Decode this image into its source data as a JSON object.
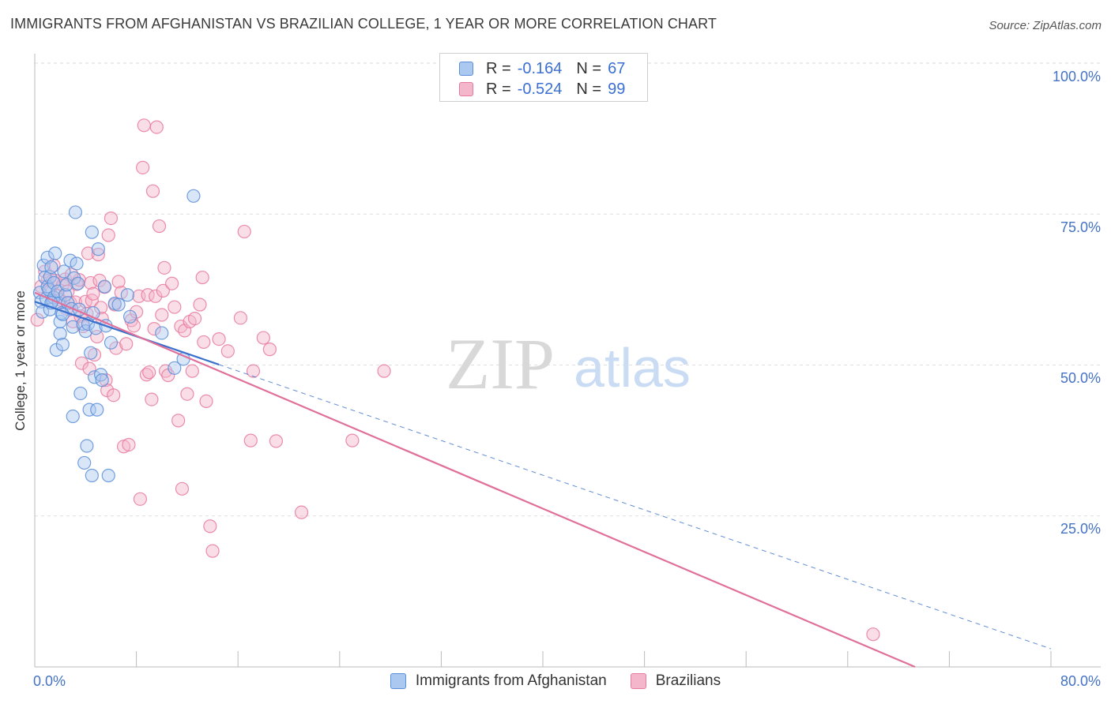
{
  "title": "IMMIGRANTS FROM AFGHANISTAN VS BRAZILIAN COLLEGE, 1 YEAR OR MORE CORRELATION CHART",
  "source": "Source: ZipAtlas.com",
  "watermark": {
    "zip": "ZIP",
    "atlas": "atlas"
  },
  "colors": {
    "blue_fill": "#aac8f0",
    "blue_stroke": "#5b8ed8",
    "blue_line": "#3a70cc",
    "pink_fill": "#f4b6ca",
    "pink_stroke": "#e8799e",
    "pink_line": "#e0709a",
    "tick_text": "#4472c4",
    "grid": "#dddddd"
  },
  "legend_top": {
    "rows": [
      {
        "r_label": "R =",
        "r_value": "-0.164",
        "n_label": "N =",
        "n_value": "67"
      },
      {
        "r_label": "R =",
        "r_value": "-0.524",
        "n_label": "N =",
        "n_value": "99"
      }
    ]
  },
  "legend_bottom": {
    "series1": "Immigrants from Afghanistan",
    "series2": "Brazilians"
  },
  "axes": {
    "ylabel": "College, 1 year or more",
    "y_ticks": [
      "100.0%",
      "75.0%",
      "50.0%",
      "25.0%"
    ],
    "x_tick_left": "0.0%",
    "x_tick_right": "80.0%"
  },
  "chart_data": {
    "type": "scatter",
    "title": "IMMIGRANTS FROM AFGHANISTAN VS BRAZILIAN COLLEGE, 1 YEAR OR MORE CORRELATION CHART",
    "xlabel": "",
    "ylabel": "College, 1 year or more",
    "xlim": [
      0,
      80
    ],
    "ylim": [
      0,
      100
    ],
    "y_gridlines": [
      25,
      50,
      75,
      100
    ],
    "legend_position": "top-center",
    "series": [
      {
        "name": "Immigrants from Afghanistan",
        "r": -0.164,
        "n": 67,
        "trend": {
          "x0": 0,
          "y0": 60.5,
          "x1": 80,
          "y1": 3.0,
          "solid_until_x": 14.5
        },
        "points": [
          [
            0.4,
            62
          ],
          [
            0.5,
            60.5
          ],
          [
            0.6,
            58.8
          ],
          [
            0.7,
            66.5
          ],
          [
            0.8,
            64.5
          ],
          [
            0.9,
            61
          ],
          [
            1.0,
            63
          ],
          [
            1.0,
            67.8
          ],
          [
            1.1,
            62.5
          ],
          [
            1.2,
            59.2
          ],
          [
            1.2,
            64.6
          ],
          [
            1.3,
            66.2
          ],
          [
            1.4,
            60.7
          ],
          [
            1.5,
            63.6
          ],
          [
            1.5,
            61.2
          ],
          [
            1.6,
            68.5
          ],
          [
            1.7,
            52.5
          ],
          [
            1.8,
            62.2
          ],
          [
            1.9,
            60.2
          ],
          [
            2.0,
            55.2
          ],
          [
            2.0,
            57.2
          ],
          [
            2.1,
            58.6
          ],
          [
            2.2,
            53.4
          ],
          [
            2.3,
            65.5
          ],
          [
            2.4,
            61.6
          ],
          [
            2.5,
            63.3
          ],
          [
            2.6,
            60.3
          ],
          [
            2.8,
            67.3
          ],
          [
            2.9,
            59.3
          ],
          [
            3.0,
            41.5
          ],
          [
            3.0,
            56.3
          ],
          [
            3.1,
            64.4
          ],
          [
            3.2,
            75.3
          ],
          [
            3.3,
            66.8
          ],
          [
            3.4,
            63.5
          ],
          [
            3.5,
            59.2
          ],
          [
            3.6,
            45.3
          ],
          [
            3.8,
            56.8
          ],
          [
            3.9,
            33.8
          ],
          [
            4.0,
            55.6
          ],
          [
            4.1,
            36.6
          ],
          [
            4.2,
            56.8
          ],
          [
            4.3,
            42.6
          ],
          [
            4.4,
            52.0
          ],
          [
            4.5,
            72.0
          ],
          [
            4.5,
            31.7
          ],
          [
            4.6,
            58.6
          ],
          [
            4.7,
            48.0
          ],
          [
            4.8,
            56.1
          ],
          [
            4.9,
            42.6
          ],
          [
            5.0,
            69.2
          ],
          [
            5.2,
            48.4
          ],
          [
            5.3,
            47.5
          ],
          [
            5.5,
            63.0
          ],
          [
            5.6,
            56.5
          ],
          [
            5.8,
            31.7
          ],
          [
            6.0,
            53.7
          ],
          [
            6.3,
            60.2
          ],
          [
            6.6,
            60.0
          ],
          [
            7.3,
            61.6
          ],
          [
            7.5,
            58.0
          ],
          [
            10.0,
            55.3
          ],
          [
            11.7,
            51.0
          ],
          [
            11.0,
            49.5
          ],
          [
            12.5,
            78.0
          ],
          [
            2.2,
            58.4
          ],
          [
            1.3,
            60.3
          ]
        ]
      },
      {
        "name": "Brazilians",
        "r": -0.524,
        "n": 99,
        "trend": {
          "x0": 0,
          "y0": 62.0,
          "x1": 69.3,
          "y1": 0.0
        },
        "points": [
          [
            0.2,
            57.5
          ],
          [
            0.5,
            63.0
          ],
          [
            0.8,
            65.5
          ],
          [
            1.0,
            64.0
          ],
          [
            1.2,
            62.3
          ],
          [
            1.4,
            64.0
          ],
          [
            1.5,
            66.5
          ],
          [
            1.6,
            64.0
          ],
          [
            1.8,
            61.5
          ],
          [
            2.0,
            60.8
          ],
          [
            2.2,
            63.2
          ],
          [
            2.4,
            64.2
          ],
          [
            2.5,
            59.3
          ],
          [
            2.6,
            62.2
          ],
          [
            2.8,
            60.3
          ],
          [
            3.0,
            57.2
          ],
          [
            3.2,
            60.4
          ],
          [
            3.3,
            63.4
          ],
          [
            3.5,
            64.1
          ],
          [
            3.6,
            58.1
          ],
          [
            3.7,
            50.3
          ],
          [
            3.8,
            56.4
          ],
          [
            4.0,
            60.5
          ],
          [
            4.1,
            58.5
          ],
          [
            4.2,
            68.5
          ],
          [
            4.3,
            49.4
          ],
          [
            4.4,
            63.6
          ],
          [
            4.5,
            60.7
          ],
          [
            4.6,
            61.8
          ],
          [
            4.7,
            51.7
          ],
          [
            4.9,
            54.7
          ],
          [
            5.0,
            68.3
          ],
          [
            5.1,
            64.0
          ],
          [
            5.2,
            59.5
          ],
          [
            5.3,
            57.7
          ],
          [
            5.5,
            62.9
          ],
          [
            5.6,
            47.5
          ],
          [
            5.7,
            45.8
          ],
          [
            5.8,
            71.5
          ],
          [
            6.0,
            74.3
          ],
          [
            6.2,
            45.0
          ],
          [
            6.3,
            60.0
          ],
          [
            6.4,
            52.8
          ],
          [
            6.6,
            63.8
          ],
          [
            6.8,
            62.0
          ],
          [
            7.0,
            36.5
          ],
          [
            7.2,
            53.5
          ],
          [
            7.4,
            36.8
          ],
          [
            7.6,
            57.4
          ],
          [
            7.8,
            56.5
          ],
          [
            8.0,
            58.8
          ],
          [
            8.2,
            61.4
          ],
          [
            8.3,
            27.8
          ],
          [
            8.5,
            82.7
          ],
          [
            8.6,
            89.7
          ],
          [
            8.8,
            48.4
          ],
          [
            8.9,
            61.6
          ],
          [
            9.0,
            48.8
          ],
          [
            9.2,
            44.3
          ],
          [
            9.3,
            78.8
          ],
          [
            9.4,
            56.0
          ],
          [
            9.5,
            61.4
          ],
          [
            9.6,
            89.4
          ],
          [
            9.8,
            73.0
          ],
          [
            10.0,
            58.3
          ],
          [
            10.1,
            62.3
          ],
          [
            10.2,
            66.1
          ],
          [
            10.3,
            49.0
          ],
          [
            10.5,
            48.3
          ],
          [
            10.8,
            63.5
          ],
          [
            11.0,
            59.6
          ],
          [
            11.3,
            40.8
          ],
          [
            11.5,
            56.4
          ],
          [
            11.6,
            29.5
          ],
          [
            11.8,
            55.7
          ],
          [
            12.0,
            45.2
          ],
          [
            12.2,
            57.2
          ],
          [
            12.4,
            49.0
          ],
          [
            12.6,
            57.7
          ],
          [
            13.0,
            60.0
          ],
          [
            13.2,
            64.5
          ],
          [
            13.3,
            53.8
          ],
          [
            13.5,
            44.0
          ],
          [
            13.8,
            23.3
          ],
          [
            14.0,
            19.2
          ],
          [
            14.5,
            54.3
          ],
          [
            15.2,
            52.3
          ],
          [
            16.2,
            57.8
          ],
          [
            16.5,
            72.1
          ],
          [
            17.0,
            37.5
          ],
          [
            17.2,
            49.0
          ],
          [
            18.0,
            54.5
          ],
          [
            18.5,
            52.6
          ],
          [
            19.0,
            37.4
          ],
          [
            21.0,
            25.6
          ],
          [
            25.0,
            37.5
          ],
          [
            27.5,
            49.0
          ],
          [
            66.0,
            5.4
          ],
          [
            2.9,
            65.0
          ]
        ]
      }
    ]
  }
}
